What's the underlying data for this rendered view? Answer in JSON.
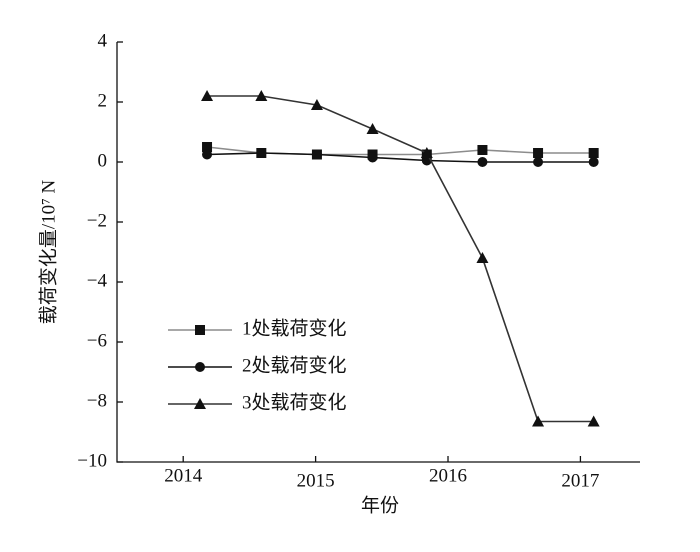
{
  "chart_data": {
    "type": "line",
    "x_label": "年份",
    "y_label": "载荷变化量/10⁷ N",
    "x": [
      2014.18,
      2014.59,
      2015.01,
      2015.43,
      2015.84,
      2016.26,
      2016.68,
      2017.1
    ],
    "series": [
      {
        "name": "1处载荷变化",
        "color": "#8c8c8c",
        "marker": "square",
        "values": [
          0.5,
          0.3,
          0.25,
          0.25,
          0.25,
          0.4,
          0.3,
          0.3
        ]
      },
      {
        "name": "2处载荷变化",
        "color": "#111111",
        "marker": "circle",
        "values": [
          0.25,
          0.3,
          0.25,
          0.15,
          0.05,
          0,
          0,
          0
        ]
      },
      {
        "name": "3处载荷变化",
        "color": "#333333",
        "marker": "triangle",
        "values": [
          2.2,
          2.2,
          1.9,
          1.1,
          0.3,
          -3.2,
          -8.65,
          -8.65
        ]
      }
    ],
    "xlim": [
      2013.5,
      2017.45
    ],
    "xticks": [
      2014,
      2015,
      2016,
      2017
    ],
    "ylim": [
      -10,
      4
    ],
    "yticks": [
      {
        "value": -10,
        "label": "−10"
      },
      {
        "value": -8,
        "label": "−8"
      },
      {
        "value": -6,
        "label": "−6"
      },
      {
        "value": -4,
        "label": "−4"
      },
      {
        "value": -2,
        "label": "−2"
      },
      0,
      2,
      4
    ],
    "legend": "lower-left"
  }
}
